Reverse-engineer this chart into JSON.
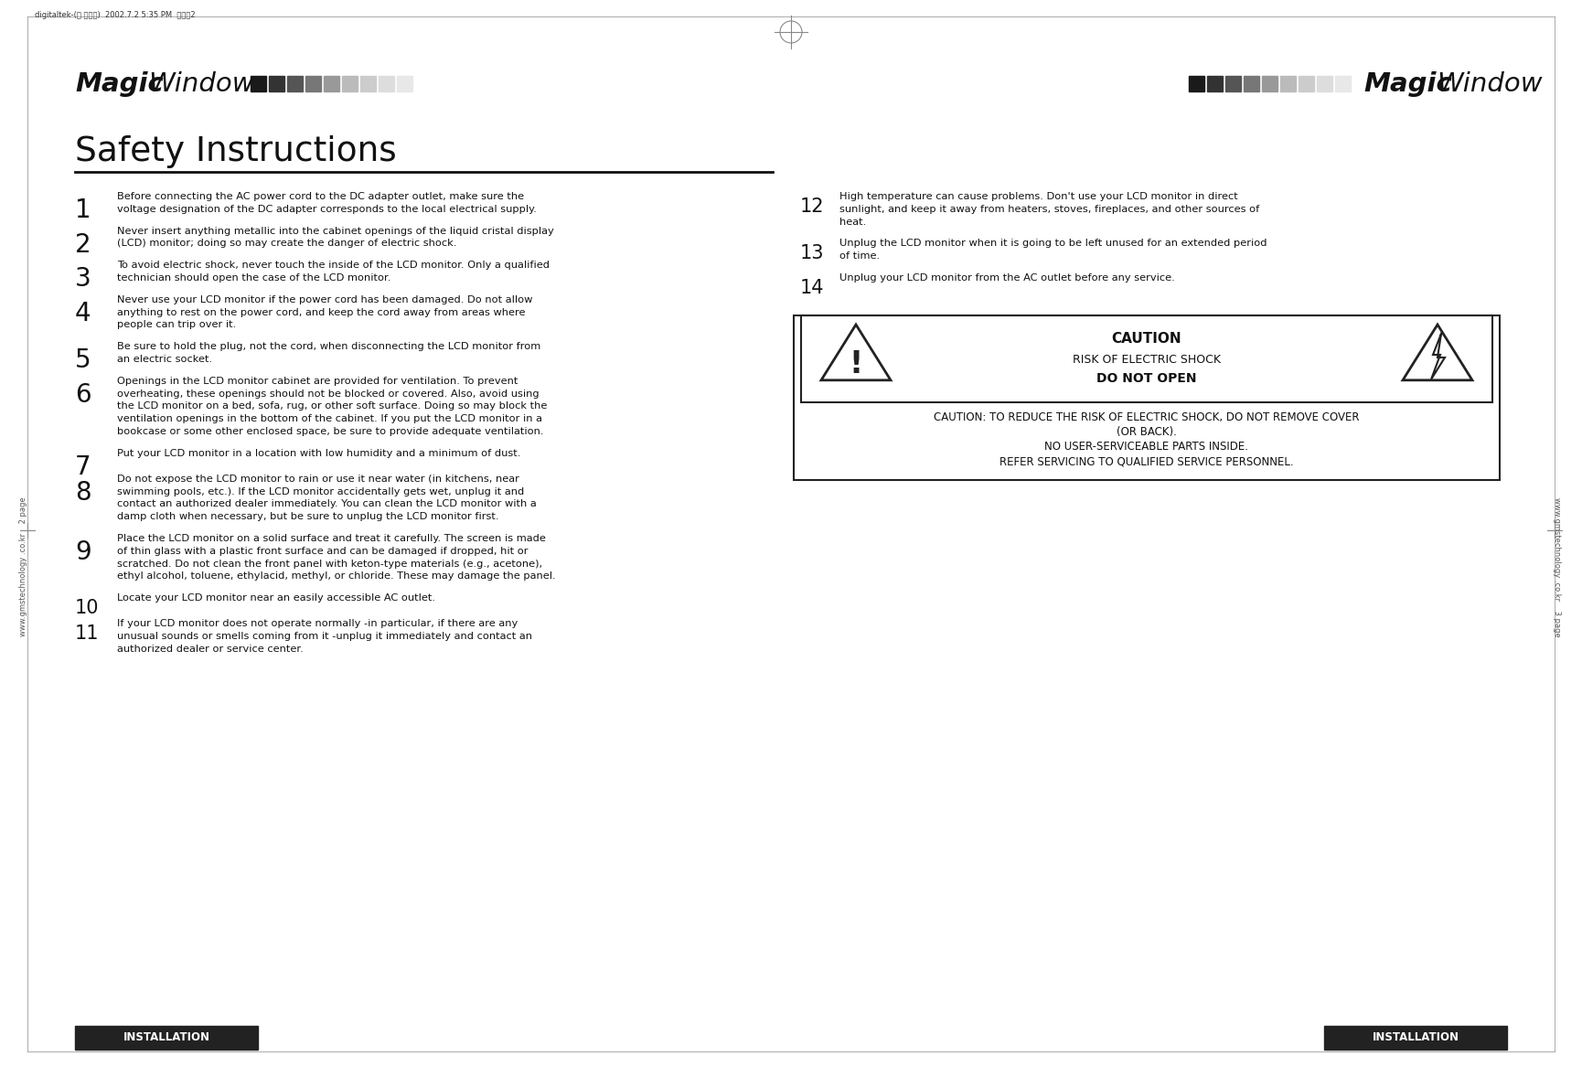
{
  "bg_color": "#ffffff",
  "header_text_left": "digitaltek-(영 문내지)  2002.7.2 5:35 PM  페이지2",
  "logo_squares_left": [
    "#1a1a1a",
    "#333333",
    "#555555",
    "#777777",
    "#999999",
    "#bbbbbb",
    "#cccccc",
    "#dddddd",
    "#e8e8e8"
  ],
  "logo_squares_right": [
    "#1a1a1a",
    "#333333",
    "#555555",
    "#777777",
    "#999999",
    "#bbbbbb",
    "#cccccc",
    "#dddddd",
    "#e8e8e8"
  ],
  "title": "Safety Instructions",
  "items_left": [
    {
      "num": "1",
      "text": "Before connecting the AC power cord to the DC adapter outlet, make sure the\nvoltage designation of the DC adapter corresponds to the local electrical supply."
    },
    {
      "num": "2",
      "text": "Never insert anything metallic into the cabinet openings of the liquid cristal display\n(LCD) monitor; doing so may create the danger of electric shock."
    },
    {
      "num": "3",
      "text": "To avoid electric shock, never touch the inside of the LCD monitor. Only a qualified\ntechnician should open the case of the LCD monitor."
    },
    {
      "num": "4",
      "text": "Never use your LCD monitor if the power cord has been damaged. Do not allow\nanything to rest on the power cord, and keep the cord away from areas where\npeople can trip over it."
    },
    {
      "num": "5",
      "text": "Be sure to hold the plug, not the cord, when disconnecting the LCD monitor from\nan electric socket."
    },
    {
      "num": "6",
      "text": "Openings in the LCD monitor cabinet are provided for ventilation. To prevent\noverheating, these openings should not be blocked or covered. Also, avoid using\nthe LCD monitor on a bed, sofa, rug, or other soft surface. Doing so may block the\nventilation openings in the bottom of the cabinet. If you put the LCD monitor in a\nbookcase or some other enclosed space, be sure to provide adequate ventilation."
    },
    {
      "num": "7",
      "text": "Put your LCD monitor in a location with low humidity and a minimum of dust."
    },
    {
      "num": "8",
      "text": "Do not expose the LCD monitor to rain or use it near water (in kitchens, near\nswimming pools, etc.). If the LCD monitor accidentally gets wet, unplug it and\ncontact an authorized dealer immediately. You can clean the LCD monitor with a\ndamp cloth when necessary, but be sure to unplug the LCD monitor first."
    },
    {
      "num": "9",
      "text": "Place the LCD monitor on a solid surface and treat it carefully. The screen is made\nof thin glass with a plastic front surface and can be damaged if dropped, hit or\nscratched. Do not clean the front panel with keton-type materials (e.g., acetone),\nethyl alcohol, toluene, ethylacid, methyl, or chloride. These may damage the panel."
    },
    {
      "num": "10",
      "text": "Locate your LCD monitor near an easily accessible AC outlet."
    },
    {
      "num": "11",
      "text": "If your LCD monitor does not operate normally -in particular, if there are any\nunusual sounds or smells coming from it -unplug it immediately and contact an\nauthorized dealer or service center."
    }
  ],
  "items_right": [
    {
      "num": "12",
      "text": "High temperature can cause problems. Don't use your LCD monitor in direct\nsunlight, and keep it away from heaters, stoves, fireplaces, and other sources of\nheat."
    },
    {
      "num": "13",
      "text": "Unplug the LCD monitor when it is going to be left unused for an extended period\nof time."
    },
    {
      "num": "14",
      "text": "Unplug your LCD monitor from the AC outlet before any service."
    }
  ],
  "caution_title": "CAUTION",
  "caution_line1": "RISK OF ELECTRIC SHOCK",
  "caution_line2": "DO NOT OPEN",
  "caution_warn1": "CAUTION: TO REDUCE THE RISK OF ELECTRIC SHOCK, DO NOT REMOVE COVER",
  "caution_warn2": "(OR BACK).",
  "caution_warn3": "NO USER-SERVICEABLE PARTS INSIDE.",
  "caution_warn4": "REFER SERVICING TO QUALIFIED SERVICE PERSONNEL.",
  "footer_left": "INSTALLATION",
  "footer_right": "INSTALLATION",
  "page_left": "www.gmstechnology .co.kr    2 page",
  "page_right": "www.gmstechnology .co.kr    3 page"
}
